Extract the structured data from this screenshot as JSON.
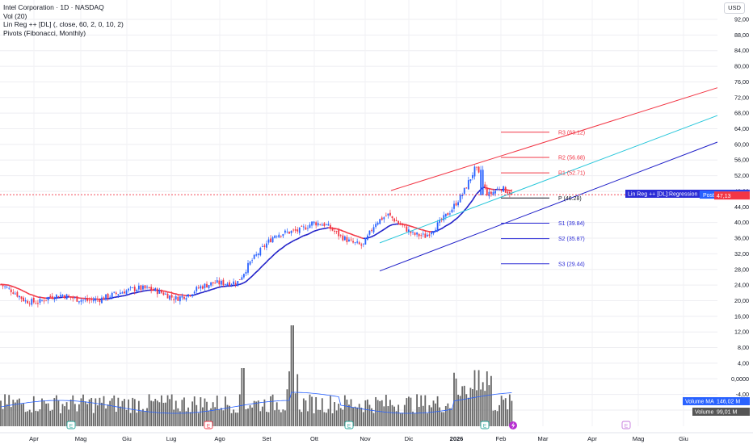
{
  "header": {
    "title": "Intel Corporation · 1D · NASDAQ",
    "indicators": [
      "Vol (20)",
      "Lin Reg ++ [DL] (, close, 60, 2, 0, 10, 2)",
      "Pivots (Fibonacci, Monthly)"
    ],
    "currency": "USD"
  },
  "chart_data": {
    "type": "candlestick",
    "x_ticks": [
      "Apr",
      "Mag",
      "Giu",
      "Lug",
      "Ago",
      "Set",
      "Ott",
      "Nov",
      "Dic",
      "2026",
      "Feb",
      "Mar",
      "Apr",
      "Mag",
      "Giu"
    ],
    "y_ticks": [
      "92,00",
      "88,00",
      "84,00",
      "80,00",
      "76,00",
      "72,00",
      "68,00",
      "64,00",
      "60,00",
      "56,00",
      "52,00",
      "48,00",
      "44,00",
      "40,00",
      "36,00",
      "32,00",
      "28,00",
      "24,00",
      "20,00",
      "16,00",
      "12,00",
      "8,00",
      "4,00",
      "0,0000",
      "-4,00",
      "-8,00"
    ],
    "close_path": [
      [
        "Apr",
        24.2
      ],
      [
        "Apr",
        22.5
      ],
      [
        "Apr",
        20.0
      ],
      [
        "Apr",
        19.5
      ],
      [
        "Mag",
        21.0
      ],
      [
        "Mag",
        21.5
      ],
      [
        "Mag",
        20.5
      ],
      [
        "Giu",
        20.0
      ],
      [
        "Giu",
        20.4
      ],
      [
        "Giu",
        21.5
      ],
      [
        "Lug",
        22.5
      ],
      [
        "Lug",
        23.2
      ],
      [
        "Lug",
        23.0
      ],
      [
        "Ago",
        22.0
      ],
      [
        "Ago",
        20.5
      ],
      [
        "Ago",
        21.5
      ],
      [
        "Ago",
        23.5
      ],
      [
        "Ago",
        24.5
      ],
      [
        "Set",
        24.5
      ],
      [
        "Set",
        24.8
      ],
      [
        "Set",
        29.8
      ],
      [
        "Set",
        33.5
      ],
      [
        "Ott",
        37.0
      ],
      [
        "Ott",
        37.5
      ],
      [
        "Ott",
        38.0
      ],
      [
        "Ott",
        40.0
      ],
      [
        "Nov",
        39.5
      ],
      [
        "Nov",
        37.0
      ],
      [
        "Nov",
        35.0
      ],
      [
        "Nov",
        34.0
      ],
      [
        "Dic",
        40.0
      ],
      [
        "Dic",
        42.0
      ],
      [
        "Dic",
        39.5
      ],
      [
        "Dic",
        37.0
      ],
      [
        "2026",
        36.5
      ],
      [
        "2026",
        39.5
      ],
      [
        "2026",
        43.0
      ],
      [
        "2026",
        47.5
      ],
      [
        "2026",
        54.0
      ],
      [
        "Feb",
        47.0
      ],
      [
        "Feb",
        49.0
      ],
      [
        "Feb",
        47.13
      ]
    ],
    "last_price": 47.13,
    "regression_line_value": 47.37,
    "post_market": 47.15,
    "pivots": [
      {
        "label": "R3 (63.12)",
        "value": 63.12,
        "color": "#f23645"
      },
      {
        "label": "R2 (56.68)",
        "value": 56.68,
        "color": "#f23645"
      },
      {
        "label": "R1 (52.71)",
        "value": 52.71,
        "color": "#f23645"
      },
      {
        "label": "P (46.28)",
        "value": 46.28,
        "color": "#131722"
      },
      {
        "label": "S1 (39.84)",
        "value": 39.84,
        "color": "#2b2bd6"
      },
      {
        "label": "S2 (35.87)",
        "value": 35.87,
        "color": "#2b2bd6"
      },
      {
        "label": "S3 (29.44)",
        "value": 29.44,
        "color": "#2b2bd6"
      }
    ],
    "channel": {
      "upper": [
        [
          40.5,
          47.0
        ],
        [
          74.5,
          110.5
        ]
      ],
      "mid": [
        [
          35.0,
          41.5
        ],
        [
          67.5,
          103.0
        ]
      ],
      "lower": [
        [
          28.0,
          34.5
        ],
        [
          60.5,
          96.5
        ]
      ]
    },
    "volume": {
      "ma_label": "Volume MA",
      "ma_value": "146,02 M",
      "label": "Volume",
      "value": "99,01 M"
    },
    "labels": {
      "regression": "Lin Reg ++ [DL]:Regression Line",
      "regression_value": "47,37",
      "post": "Post",
      "post_value": "47,15",
      "last_value": "47,13"
    },
    "colors": {
      "up": "#2962ff",
      "down": "#f23645",
      "regression_up": "#1e1ec8",
      "regression_down": "#f23645",
      "channel_mid": "#26c6da",
      "volume": "#666666",
      "volume_ma": "#2962ff"
    }
  }
}
